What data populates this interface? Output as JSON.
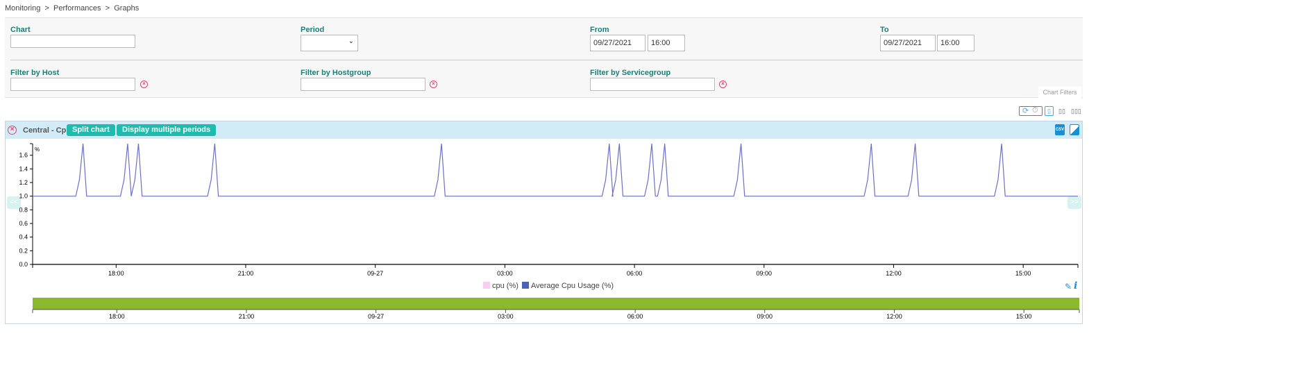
{
  "breadcrumb": [
    "Monitoring",
    "Performances",
    "Graphs"
  ],
  "breadcrumb_sep": ">",
  "filters": {
    "chart": {
      "label": "Chart",
      "value": ""
    },
    "period": {
      "label": "Period",
      "value": ""
    },
    "from": {
      "label": "From",
      "date": "09/27/2021",
      "time": "16:00"
    },
    "to": {
      "label": "To",
      "date": "09/27/2021",
      "time": "16:00"
    },
    "host": {
      "label": "Filter by Host",
      "value": ""
    },
    "hostgroup": {
      "label": "Filter by Hostgroup",
      "value": ""
    },
    "servicegroup": {
      "label": "Filter by Servicegroup",
      "value": ""
    },
    "tab_label": "Chart Filters"
  },
  "toolbar": {
    "icons": [
      "refresh-icon",
      "timer-icon",
      "layout-1-column-icon",
      "layout-2-columns-icon",
      "layout-3-columns-icon"
    ],
    "layout_selected": 1
  },
  "chart_panel": {
    "title": "Central - Cpu",
    "split_label": "Split chart",
    "multi_label": "Display multiple periods",
    "prev_label": "<<",
    "next_label": ">>",
    "export_icons": [
      "csv-export-icon",
      "image-export-icon"
    ],
    "colors": {
      "header": "#d2ecf7",
      "button": "#1fbcae",
      "line": "#6b6fc6",
      "navigator": "#8ab92d"
    }
  },
  "chart_data": {
    "type": "line",
    "ylabel": "%",
    "ylim": [
      0,
      1.77
    ],
    "yticks": [
      "0.0",
      "0.2",
      "0.4",
      "0.6",
      "0.8",
      "1.0",
      "1.2",
      "1.4",
      "1.6"
    ],
    "xlim": [
      "2021-09-26 16:04",
      "2021-09-27 16:16"
    ],
    "xticks": [
      {
        "t": "2021-09-26 18:00",
        "label": "18:00"
      },
      {
        "t": "2021-09-26 21:00",
        "label": "21:00"
      },
      {
        "t": "2021-09-27 00:00",
        "label": "09-27"
      },
      {
        "t": "2021-09-27 03:00",
        "label": "03:00"
      },
      {
        "t": "2021-09-27 06:00",
        "label": "06:00"
      },
      {
        "t": "2021-09-27 09:00",
        "label": "09:00"
      },
      {
        "t": "2021-09-27 12:00",
        "label": "12:00"
      },
      {
        "t": "2021-09-27 15:00",
        "label": "15:00"
      }
    ],
    "legend": [
      {
        "name": "cpu (%)",
        "color": "#f9cdf0"
      },
      {
        "name": "Average Cpu Usage (%)",
        "color": "#4b62b5"
      }
    ],
    "baseline": 1.0,
    "spike_shape": {
      "pre": 1.24,
      "peak": 1.77
    },
    "spike_peaks": [
      "2021-09-26 17:14",
      "2021-09-26 18:16",
      "2021-09-26 18:31",
      "2021-09-26 20:17",
      "2021-09-27 01:32",
      "2021-09-27 05:25",
      "2021-09-27 05:39",
      "2021-09-27 06:24",
      "2021-09-27 06:42",
      "2021-09-27 08:28",
      "2021-09-27 11:29",
      "2021-09-27 12:30",
      "2021-09-27 14:30"
    ],
    "grid": false
  }
}
